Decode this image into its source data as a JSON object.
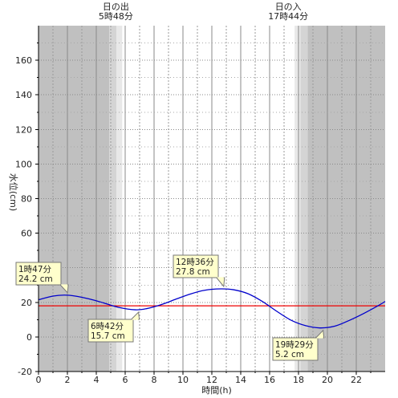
{
  "chart_data": {
    "type": "line",
    "xlabel": "時間(h)",
    "ylabel": "水位(cm)",
    "xlim": [
      0,
      24
    ],
    "ylim": [
      -20,
      180
    ],
    "x_ticks": [
      "0",
      "2",
      "4",
      "6",
      "8",
      "10",
      "12",
      "14",
      "16",
      "18",
      "20",
      "22"
    ],
    "y_ticks": [
      "-20",
      "0",
      "20",
      "40",
      "60",
      "80",
      "100",
      "120",
      "140",
      "160"
    ],
    "grid": true,
    "sunrise": {
      "label": "日の出",
      "time": "5時48分",
      "x": 5.8
    },
    "sunset": {
      "label": "日の入",
      "time": "17時44分",
      "x": 17.733
    },
    "reference_level": 18,
    "series": [
      {
        "x": [
          0,
          1,
          1.783,
          2.5,
          3.5,
          4.5,
          5.5,
          6.7,
          7.5,
          8.5,
          9.5,
          10.5,
          11.5,
          12.6,
          13.5,
          14.5,
          15.5,
          16.5,
          17.5,
          18.5,
          19.483,
          20.5,
          21.5,
          22.5,
          23.5,
          24
        ],
        "y": [
          21.5,
          23.6,
          24.2,
          23.7,
          22.0,
          19.7,
          17.2,
          15.7,
          16.4,
          18.7,
          21.8,
          24.8,
          27.0,
          27.8,
          27.3,
          25.0,
          20.5,
          14.8,
          9.6,
          6.5,
          5.2,
          6.2,
          9.5,
          13.5,
          18.0,
          20.5
        ],
        "color": "#0000cc"
      }
    ],
    "annotations": [
      {
        "time": "1時47分",
        "value": "24.2 cm",
        "x": 1.783,
        "y": 24.2
      },
      {
        "time": "6時42分",
        "value": "15.7 cm",
        "x": 6.7,
        "y": 15.7
      },
      {
        "time": "12時36分",
        "value": "27.8 cm",
        "x": 12.6,
        "y": 27.8
      },
      {
        "time": "19時29分",
        "value": "5.2 cm",
        "x": 19.483,
        "y": 5.2
      }
    ],
    "colors": {
      "night": "#c0c0c0",
      "twilight_outer": "#d4d4d4",
      "twilight_inner": "#e8e8e8",
      "day": "#ffffff",
      "curve": "#0000cc",
      "reference": "#ee0000",
      "annotation_bg": "#ffffcc"
    }
  }
}
